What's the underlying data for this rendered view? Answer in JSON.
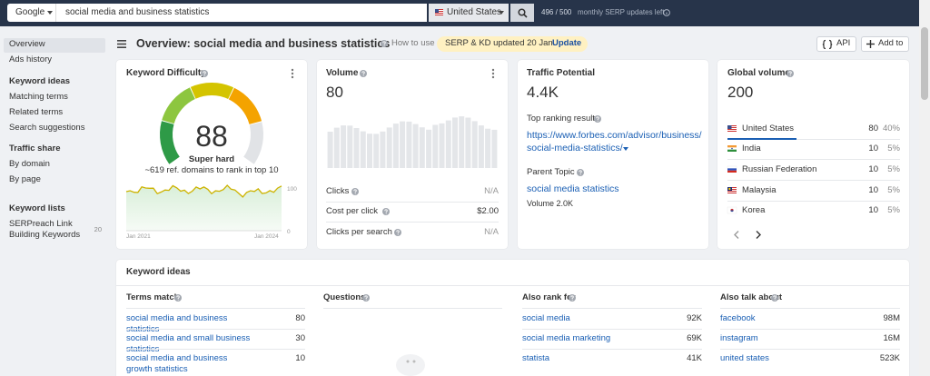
{
  "top_bar": {
    "engine": "Google",
    "query": "social media and business statistics",
    "country": "United States",
    "usage": "496 / 500",
    "usage_note": "monthly SERP updates left"
  },
  "sidebar": {
    "overview": "Overview",
    "ads_history": "Ads history",
    "sections": [
      {
        "title": "Keyword ideas",
        "items": [
          "Matching terms",
          "Related terms",
          "Search suggestions"
        ]
      },
      {
        "title": "Traffic share",
        "items": [
          "By domain",
          "By page"
        ]
      },
      {
        "title": "Keyword lists",
        "items": [
          "SERPreach Link Building Keywords"
        ],
        "counts": [
          20
        ]
      }
    ]
  },
  "header": {
    "title": "Overview: social media and business statistics",
    "how_to_use": "How to use",
    "notice": "SERP & KD updated 20 Jan.",
    "notice_action": "Update",
    "api": "API",
    "add_to": "Add to"
  },
  "keyword_difficulty": {
    "title": "Keyword Difficulty",
    "score": 88,
    "label": "Super hard",
    "note": "~619 ref. domains to rank in top 10",
    "chart": {
      "y_max": 100,
      "y_min": 0,
      "start": "Jan 2021",
      "end": "Jan 2024"
    }
  },
  "volume": {
    "title": "Volume",
    "value": 80,
    "metrics": [
      {
        "name": "Clicks",
        "value": "N/A"
      },
      {
        "name": "Cost per click",
        "value": "$2.00"
      },
      {
        "name": "Clicks per search",
        "value": "N/A"
      }
    ]
  },
  "traffic_potential": {
    "title": "Traffic Potential",
    "value": "4.4K",
    "top_result_label": "Top ranking result",
    "top_result_url": [
      "https://www.forbes.com/advisor/business/",
      "social-media-statistics/"
    ],
    "parent_topic_label": "Parent Topic",
    "parent_topic": "social media statistics",
    "parent_topic_volume": "Volume 2.0K"
  },
  "global_volume": {
    "title": "Global volume",
    "value": 200,
    "countries": [
      {
        "name": "United States",
        "volume": 80,
        "share": "40%"
      },
      {
        "name": "India",
        "volume": 10,
        "share": "5%"
      },
      {
        "name": "Russian Federation",
        "volume": 10,
        "share": "5%"
      },
      {
        "name": "Malaysia",
        "volume": 10,
        "share": "5%"
      },
      {
        "name": "Korea",
        "volume": 10,
        "share": "5%"
      }
    ]
  },
  "keyword_ideas": {
    "title": "Keyword ideas",
    "columns": [
      {
        "title": "Terms match",
        "rows": [
          {
            "keyword": "social media and business statistics",
            "value": "80"
          },
          {
            "keyword": "social media and small business statistics",
            "value": "30"
          },
          {
            "keyword": "social media and business growth statistics",
            "value": "10"
          }
        ]
      },
      {
        "title": "Questions",
        "rows": []
      },
      {
        "title": "Also rank for",
        "rows": [
          {
            "keyword": "social media",
            "value": "92K"
          },
          {
            "keyword": "social media marketing",
            "value": "69K"
          },
          {
            "keyword": "statista",
            "value": "41K"
          }
        ]
      },
      {
        "title": "Also talk about",
        "rows": [
          {
            "keyword": "facebook",
            "value": "98M"
          },
          {
            "keyword": "instagram",
            "value": "16M"
          },
          {
            "keyword": "united states",
            "value": "523K"
          }
        ]
      }
    ]
  }
}
